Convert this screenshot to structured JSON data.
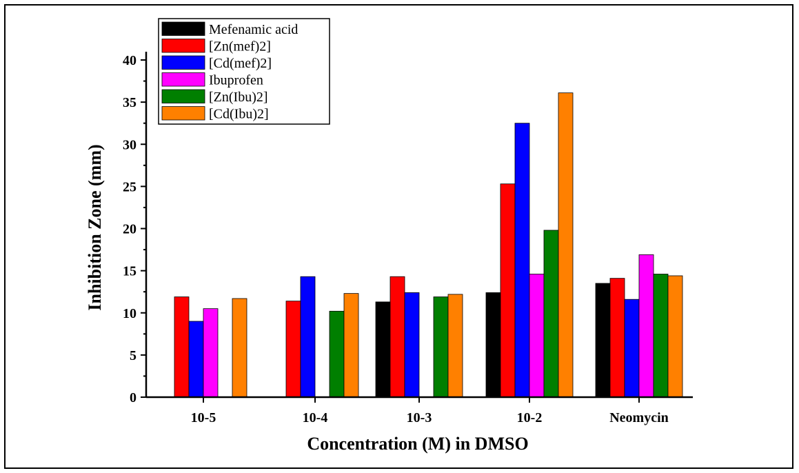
{
  "chart_data": {
    "type": "bar",
    "title": "",
    "xlabel": "Concentration (M) in DMSO",
    "ylabel": "Inhibition Zone (mm)",
    "ylim": [
      0,
      40
    ],
    "yticks": [
      0,
      5,
      10,
      15,
      20,
      25,
      30,
      35,
      40
    ],
    "categories": [
      "10-5",
      "10-4",
      "10-3",
      "10-2",
      "Neomycin"
    ],
    "legend_position": "top-left",
    "series": [
      {
        "name": "Mefenamic acid",
        "color": "#000000",
        "values": [
          0,
          0,
          11.3,
          12.4,
          13.5
        ]
      },
      {
        "name": "[Zn(mef)2]",
        "color": "#ff0000",
        "values": [
          11.9,
          11.4,
          14.3,
          25.3,
          14.1
        ]
      },
      {
        "name": "[Cd(mef)2]",
        "color": "#0000ff",
        "values": [
          9.0,
          14.3,
          12.4,
          32.5,
          11.6
        ]
      },
      {
        "name": "Ibuprofen",
        "color": "#ff00ff",
        "values": [
          10.5,
          0,
          0,
          14.6,
          16.9
        ]
      },
      {
        "name": "[Zn(Ibu)2]",
        "color": "#007f00",
        "values": [
          0,
          10.2,
          11.9,
          19.8,
          14.6
        ]
      },
      {
        "name": "[Cd(Ibu)2]",
        "color": "#ff8000",
        "values": [
          11.7,
          12.3,
          12.2,
          36.1,
          14.4
        ]
      }
    ]
  }
}
